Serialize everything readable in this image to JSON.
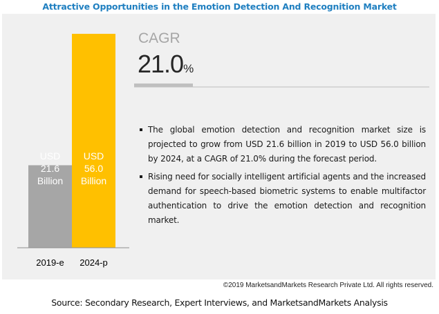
{
  "title": "Attractive Opportunities in the Emotion Detection And Recognition Market",
  "cagr": {
    "label": "CAGR",
    "value": "21.0",
    "unit": "%"
  },
  "bullets": [
    "The global emotion detection and recognition market size is projected to grow from USD 21.6 billion in 2019 to USD 56.0 billion by 2024, at a CAGR of 21.0% during the forecast period.",
    "Rising need for socially intelligent artificial agents and the increased demand for speech-based biometric systems to enable multifactor authentication to drive the emotion detection and recognition market."
  ],
  "copyright": "©2019 MarketsandMarkets Research Private Ltd. All rights reserved.",
  "source": "Source: Secondary Research, Expert Interviews, and MarketsandMarkets Analysis",
  "chart_data": {
    "type": "bar",
    "title": "Attractive Opportunities in the Emotion Detection And Recognition Market",
    "categories": [
      "2019-e",
      "2024-p"
    ],
    "values": [
      21.6,
      56.0
    ],
    "unit": "USD Billion",
    "bar_labels": [
      [
        "USD",
        "21.6",
        "Billion"
      ],
      [
        "USD",
        "56.0",
        "Billion"
      ]
    ],
    "colors": [
      "#a6a6a6",
      "#ffc000"
    ],
    "xlabel": "",
    "ylabel": "",
    "ylim": [
      0,
      56.0
    ],
    "grid": false,
    "legend": "none"
  }
}
